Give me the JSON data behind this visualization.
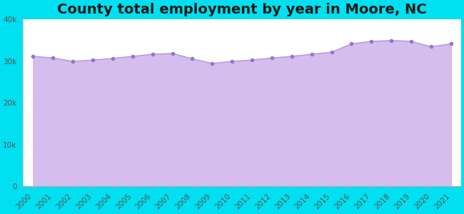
{
  "title": "County total employment by year in Moore, NC",
  "years": [
    2000,
    2001,
    2002,
    2003,
    2004,
    2005,
    2006,
    2007,
    2008,
    2009,
    2010,
    2011,
    2012,
    2013,
    2014,
    2015,
    2016,
    2017,
    2018,
    2019,
    2020,
    2021
  ],
  "values": [
    31200,
    30800,
    30000,
    30300,
    30700,
    31200,
    31700,
    31900,
    30600,
    29500,
    30000,
    30300,
    30800,
    31200,
    31700,
    32200,
    34200,
    34800,
    35000,
    34800,
    33500,
    34200
  ],
  "line_color": "#b39ddb",
  "fill_color": "#c8a8e8",
  "fill_alpha": 0.75,
  "marker_color": "#9575cd",
  "bg_outer": "#00e0f0",
  "bg_plot": "#ffffff",
  "title_color": "#1a1a1a",
  "tick_color": "#555555",
  "ylim": [
    0,
    40000
  ],
  "yticks": [
    0,
    10000,
    20000,
    30000,
    40000
  ],
  "title_fontsize": 14,
  "tick_fontsize": 7.5
}
